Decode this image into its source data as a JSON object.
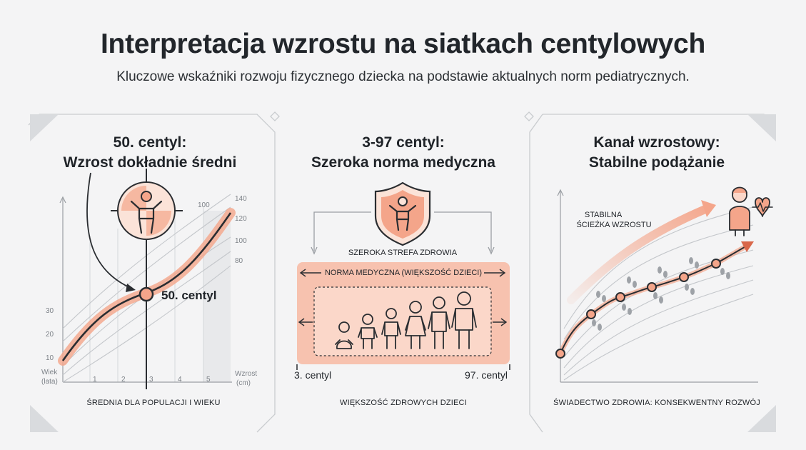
{
  "header": {
    "title": "Interpretacja wzrostu na siatkach centylowych",
    "subtitle": "Kluczowe wskaźniki rozwoju fizycznego dziecka na podstawie aktualnych norm pediatrycznych."
  },
  "colors": {
    "accent": "#f4a58a",
    "accent_dark": "#d9674a",
    "accent_light": "#fbd7c9",
    "line_dark": "#2a2d31",
    "grid": "#c9cccf"
  },
  "panel1": {
    "title_line1": "50. centyl:",
    "title_line2": "Wzrost dokładnie średni",
    "marker_label": "50. centyl",
    "x_axis_label_1": "Wiek",
    "x_axis_label_2": "(lata)",
    "y_axis_right_label_1": "Wzrost",
    "y_axis_right_label_2": "(cm)",
    "x_ticks": [
      "1",
      "2",
      "3",
      "4",
      "5"
    ],
    "y_ticks_left": [
      "10",
      "20",
      "30"
    ],
    "y_ticks_right": [
      "140",
      "120",
      "100",
      "80"
    ],
    "top_tick": "100",
    "caption": "ŚREDNIA DLA POPULACJI I WIEKU",
    "icon": "child-target-icon"
  },
  "panel2": {
    "title_line1": "3-97 centyl:",
    "title_line2": "Szeroka norma medyczna",
    "shield_label": "SZEROKA STREFA ZDROWIA",
    "band_label": "NORMA MEDYCZNA (WIĘKSZOŚĆ DZIECI)",
    "left_label": "3. centyl",
    "right_label": "97. centyl",
    "caption": "WIĘKSZOŚĆ ZDROWYCH DZIECI",
    "icon": "shield-child-icon"
  },
  "panel3": {
    "title_line1": "Kanał wzrostowy:",
    "title_line2": "Stabilne podążanie",
    "path_label_1": "STABILNA",
    "path_label_2": "ŚCIEŻKA WZROSTU",
    "caption": "ŚWIADECTWO ZDROWIA: KONSEKWENTNY ROZWÓJ",
    "icon": "doctor-heart-icon"
  }
}
